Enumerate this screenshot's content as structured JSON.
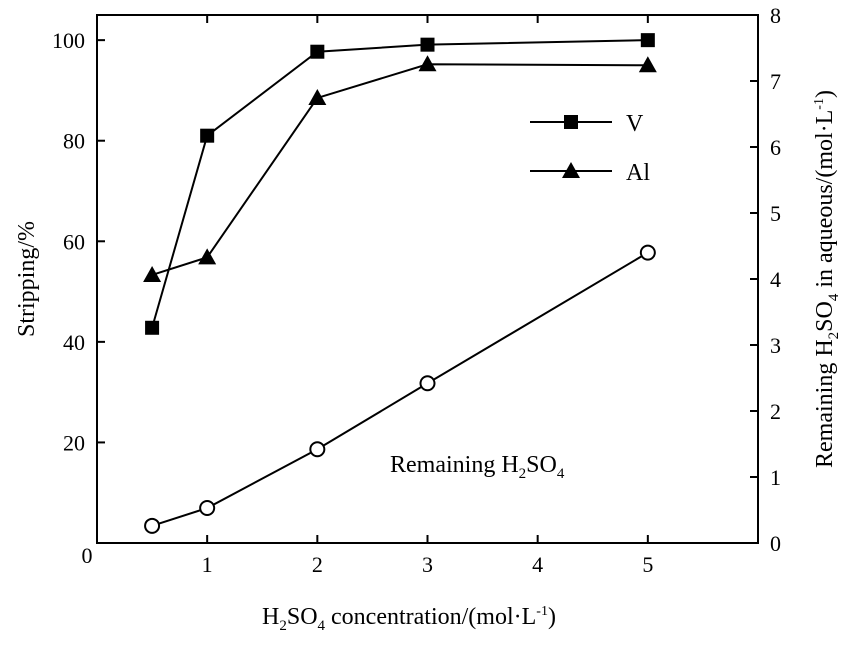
{
  "chart_data": {
    "type": "line",
    "xlabel": {
      "text": "H2SO4 concentration/(mol·L-1)",
      "parts": [
        "H",
        "2",
        "SO",
        "4",
        " concentration/(mol·L",
        "-1",
        ")"
      ]
    },
    "ylabel_left": "Stripping/%",
    "ylabel_right": {
      "text": "Remaining H2SO4 in aqueous/(mol·L-1)",
      "parts": [
        "Remaining H",
        "2",
        "SO",
        "4",
        " in aqueous/(mol·L",
        "-1",
        ")"
      ]
    },
    "xlim": [
      0,
      6
    ],
    "ylim_left": [
      0,
      105
    ],
    "ylim_right": [
      0,
      8
    ],
    "x_ticks": [
      1,
      2,
      3,
      4,
      5
    ],
    "y_left_ticks": [
      0,
      20,
      40,
      60,
      80,
      100
    ],
    "y_right_ticks": [
      0,
      1,
      2,
      3,
      4,
      5,
      6,
      7,
      8
    ],
    "grid": false,
    "legend_position": "top-right",
    "series": [
      {
        "name": "V",
        "axis": "left",
        "marker": "filled-square",
        "color": "#000000",
        "x": [
          0.5,
          1,
          2,
          3,
          5
        ],
        "y": [
          42.8,
          81.0,
          97.7,
          99.1,
          100.0
        ]
      },
      {
        "name": "Al",
        "axis": "left",
        "marker": "filled-triangle",
        "color": "#000000",
        "x": [
          0.5,
          1,
          2,
          3,
          5
        ],
        "y": [
          53.3,
          56.8,
          88.5,
          95.2,
          95.0
        ]
      },
      {
        "name": "Remaining H2SO4",
        "axis": "right",
        "marker": "open-circle",
        "color": "#000000",
        "x": [
          0.5,
          1,
          2,
          3,
          5
        ],
        "y": [
          0.26,
          0.53,
          1.42,
          2.42,
          4.4
        ]
      }
    ],
    "annotation": {
      "text": "Remaining H2SO4",
      "parts": [
        "Remaining H",
        "2",
        "SO",
        "4"
      ]
    }
  }
}
